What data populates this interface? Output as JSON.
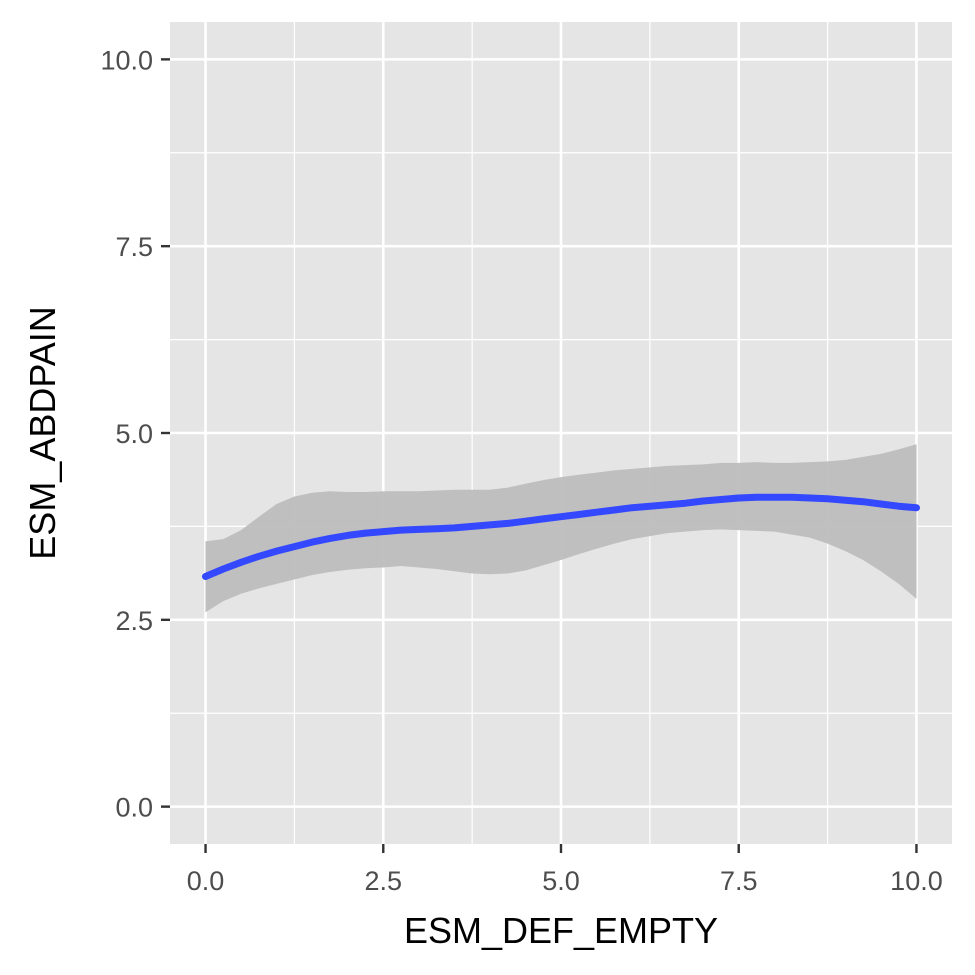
{
  "chart_data": {
    "type": "line",
    "title": "",
    "xlabel": "ESM_DEF_EMPTY",
    "ylabel": "ESM_ABDPAIN",
    "xlim": [
      -0.5,
      10.5
    ],
    "ylim": [
      -0.5,
      10.5
    ],
    "x_ticks": [
      0.0,
      2.5,
      5.0,
      7.5,
      10.0
    ],
    "x_tick_labels": [
      "0.0",
      "2.5",
      "5.0",
      "7.5",
      "10.0"
    ],
    "y_ticks": [
      0.0,
      2.5,
      5.0,
      7.5,
      10.0
    ],
    "y_tick_labels": [
      "0.0",
      "2.5",
      "5.0",
      "7.5",
      "10.0"
    ],
    "grid": true,
    "legend": "none",
    "colors": {
      "panel_background": "#e5e5e5",
      "grid": "#ffffff",
      "line": "#3348ff",
      "ribbon": "#bdbdbd"
    },
    "series": [
      {
        "x": [
          0,
          0.25,
          0.5,
          0.75,
          1,
          1.25,
          1.5,
          1.75,
          2,
          2.25,
          2.5,
          2.75,
          3,
          3.25,
          3.5,
          3.75,
          4,
          4.25,
          4.5,
          4.75,
          5,
          5.25,
          5.5,
          5.75,
          6,
          6.25,
          6.5,
          6.75,
          7,
          7.25,
          7.5,
          7.75,
          8,
          8.25,
          8.5,
          8.75,
          9,
          9.25,
          9.5,
          9.75,
          10
        ],
        "y": [
          3.08,
          3.18,
          3.27,
          3.35,
          3.42,
          3.48,
          3.54,
          3.59,
          3.63,
          3.66,
          3.68,
          3.7,
          3.71,
          3.72,
          3.73,
          3.75,
          3.77,
          3.79,
          3.82,
          3.85,
          3.88,
          3.91,
          3.94,
          3.97,
          4.0,
          4.02,
          4.04,
          4.06,
          4.09,
          4.11,
          4.13,
          4.14,
          4.14,
          4.14,
          4.13,
          4.12,
          4.1,
          4.08,
          4.05,
          4.02,
          4.0
        ],
        "lower": [
          2.6,
          2.75,
          2.85,
          2.92,
          2.98,
          3.04,
          3.1,
          3.14,
          3.17,
          3.19,
          3.2,
          3.22,
          3.2,
          3.18,
          3.15,
          3.12,
          3.11,
          3.12,
          3.16,
          3.23,
          3.3,
          3.38,
          3.45,
          3.52,
          3.58,
          3.62,
          3.66,
          3.68,
          3.7,
          3.71,
          3.7,
          3.69,
          3.68,
          3.64,
          3.6,
          3.52,
          3.42,
          3.3,
          3.15,
          2.98,
          2.78
        ],
        "upper": [
          3.55,
          3.58,
          3.7,
          3.88,
          4.05,
          4.15,
          4.2,
          4.22,
          4.21,
          4.21,
          4.22,
          4.22,
          4.22,
          4.23,
          4.24,
          4.24,
          4.24,
          4.27,
          4.32,
          4.37,
          4.41,
          4.44,
          4.47,
          4.5,
          4.52,
          4.54,
          4.56,
          4.57,
          4.58,
          4.6,
          4.6,
          4.61,
          4.6,
          4.6,
          4.61,
          4.62,
          4.64,
          4.68,
          4.72,
          4.78,
          4.85
        ]
      }
    ]
  }
}
